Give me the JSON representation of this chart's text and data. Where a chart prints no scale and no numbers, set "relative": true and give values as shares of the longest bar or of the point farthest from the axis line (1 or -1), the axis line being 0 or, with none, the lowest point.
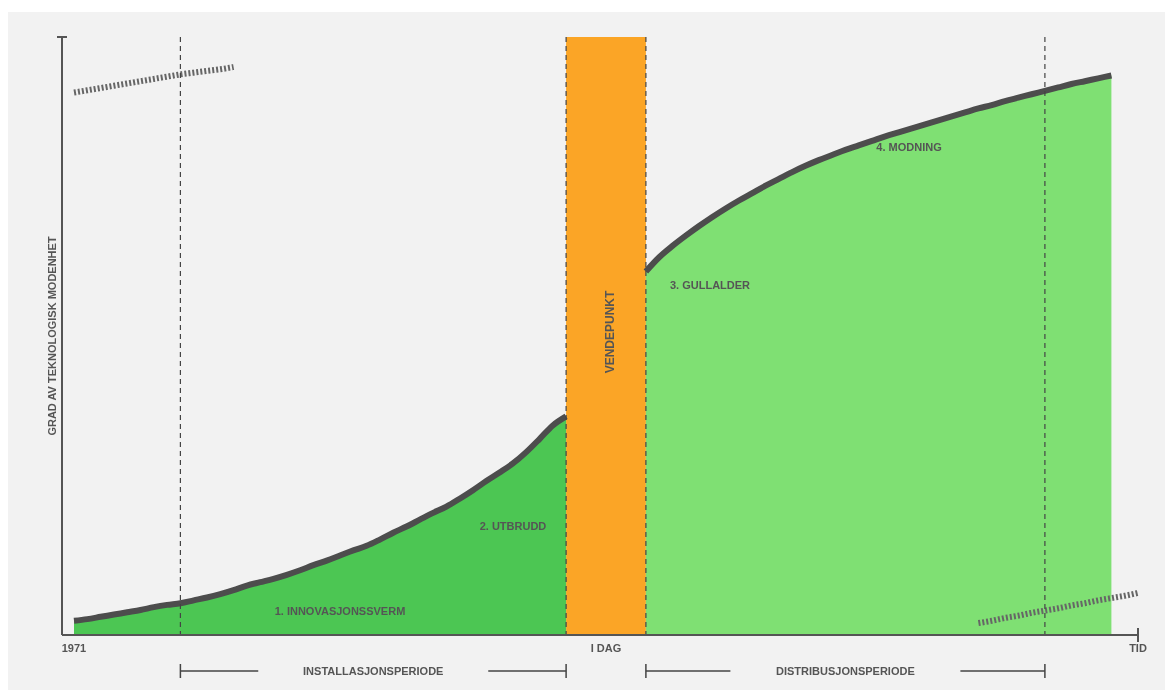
{
  "chart_data": {
    "type": "area",
    "relative": true,
    "grid": "x",
    "ylabel": "GRAD AV TEKNOLOGISK MODENHET",
    "categories": [
      "1971",
      null,
      null,
      null,
      null,
      null,
      null,
      null,
      null,
      null,
      null,
      null,
      null,
      null,
      null,
      null,
      null,
      null,
      null,
      null,
      null,
      null,
      null,
      null,
      null,
      null,
      null,
      null,
      null,
      null,
      null,
      null,
      null,
      null,
      null,
      null,
      null,
      null,
      null,
      null,
      "I DAG",
      null,
      null,
      null,
      null,
      null,
      null,
      null,
      null,
      null,
      null,
      null,
      null,
      null,
      null,
      null,
      null,
      null,
      null,
      null,
      null,
      null,
      null,
      null,
      null,
      null,
      null,
      null,
      null,
      null,
      null,
      null,
      null,
      null,
      null,
      null,
      null,
      null,
      null,
      null,
      "TID"
    ],
    "series": [
      {
        "color": "#4cc653",
        "values": [
          0.025,
          0.028,
          0.032,
          0.036,
          0.04,
          0.044,
          0.049,
          0.053,
          0.056,
          0.061,
          0.066,
          0.072,
          0.079,
          0.087,
          0.093,
          0.099,
          0.106,
          0.114,
          0.123,
          0.131,
          0.14,
          0.149,
          0.157,
          0.168,
          0.18,
          0.191,
          0.203,
          0.215,
          0.226,
          0.24,
          0.255,
          0.271,
          0.286,
          0.302,
          0.322,
          0.345,
          0.369,
          0.385,
          null,
          null,
          null,
          null,
          null,
          null,
          null,
          null,
          null,
          null,
          null,
          null,
          null,
          null,
          null,
          null,
          null,
          null,
          null,
          null,
          null,
          null,
          null,
          null,
          null,
          null,
          null,
          null,
          null,
          null,
          null,
          null,
          null,
          null,
          null,
          null,
          null,
          null,
          null,
          null,
          null,
          null,
          null
        ]
      },
      {
        "color": "#7fe073",
        "values": [
          null,
          null,
          null,
          null,
          null,
          null,
          null,
          null,
          null,
          null,
          null,
          null,
          null,
          null,
          null,
          null,
          null,
          null,
          null,
          null,
          null,
          null,
          null,
          null,
          null,
          null,
          null,
          null,
          null,
          null,
          null,
          null,
          null,
          null,
          null,
          null,
          null,
          null,
          null,
          null,
          null,
          null,
          null,
          0.64,
          0.665,
          0.685,
          0.703,
          0.72,
          0.736,
          0.751,
          0.765,
          0.778,
          0.791,
          0.803,
          0.815,
          0.826,
          0.836,
          0.845,
          0.854,
          0.862,
          0.87,
          0.878,
          0.885,
          0.892,
          0.899,
          0.906,
          0.913,
          0.92,
          0.927,
          0.933,
          0.94,
          0.946,
          0.952,
          0.958,
          0.964,
          0.97,
          0.975,
          0.98,
          0.985,
          null,
          null
        ]
      },
      {
        "type": "line",
        "line_style": "dotted",
        "color": "#666666",
        "values": [
          0.955,
          0.959,
          0.963,
          0.967,
          0.971,
          0.975,
          0.979,
          0.983,
          0.987,
          0.99,
          0.993,
          0.996,
          1.0,
          null,
          null,
          null,
          null,
          null,
          null,
          null,
          null,
          null,
          null,
          null,
          null,
          null,
          null,
          null,
          null,
          null,
          null,
          null,
          null,
          null,
          null,
          null,
          null,
          null,
          null,
          null,
          null,
          null,
          null,
          null,
          null,
          null,
          null,
          null,
          null,
          null,
          null,
          null,
          null,
          null,
          null,
          null,
          null,
          null,
          null,
          null,
          null,
          null,
          null,
          null,
          null,
          null,
          null,
          null,
          null,
          null,
          null,
          null,
          null,
          null,
          null,
          null,
          null,
          null,
          null,
          null,
          null
        ]
      },
      {
        "type": "line",
        "line_style": "dotted",
        "color": "#666666",
        "values": [
          null,
          null,
          null,
          null,
          null,
          null,
          null,
          null,
          null,
          null,
          null,
          null,
          null,
          null,
          null,
          null,
          null,
          null,
          null,
          null,
          null,
          null,
          null,
          null,
          null,
          null,
          null,
          null,
          null,
          null,
          null,
          null,
          null,
          null,
          null,
          null,
          null,
          null,
          null,
          null,
          null,
          null,
          null,
          null,
          null,
          null,
          null,
          null,
          null,
          null,
          null,
          null,
          null,
          null,
          null,
          null,
          null,
          null,
          null,
          null,
          null,
          null,
          null,
          null,
          null,
          null,
          null,
          null,
          0.021,
          0.025,
          0.03,
          0.034,
          0.039,
          0.043,
          0.047,
          0.052,
          0.056,
          0.061,
          0.065,
          0.069,
          0.074
        ]
      }
    ],
    "annotations": [
      "1. INNOVASJONSSVERM",
      "2. UTBRUDD",
      "3. GULLALDER",
      "4. MODNING",
      "INSTALLASJONSPERIODE",
      "DISTRIBUSJONSPERIODE",
      "VENDEPUNKT"
    ]
  }
}
